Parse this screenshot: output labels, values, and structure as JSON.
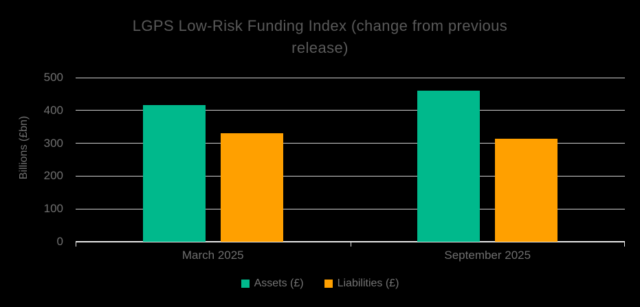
{
  "title": "LGPS Low-Risk Funding Index (change from previous release)",
  "chart_data": {
    "type": "bar",
    "title": "LGPS Low-Risk Funding Index (change from previous release)",
    "xlabel": "",
    "ylabel": "Billions (£bn)",
    "categories": [
      "March 2025",
      "September 2025"
    ],
    "series": [
      {
        "name": "Assets (£)",
        "color": "#00B98C",
        "values": [
          416,
          460
        ]
      },
      {
        "name": "Liabilities (£)",
        "color": "#FFA000",
        "values": [
          331,
          313
        ]
      }
    ],
    "ylim": [
      0,
      500
    ],
    "yticks": [
      0,
      100,
      200,
      300,
      400,
      500
    ],
    "grid": true,
    "legend_position": "bottom"
  },
  "theme": {
    "background": "#000000",
    "title_color": "#595959",
    "axis_text_color": "#707070",
    "gridline_color": "#cfcfcf",
    "axis_line_color": "#e8e8e8"
  }
}
